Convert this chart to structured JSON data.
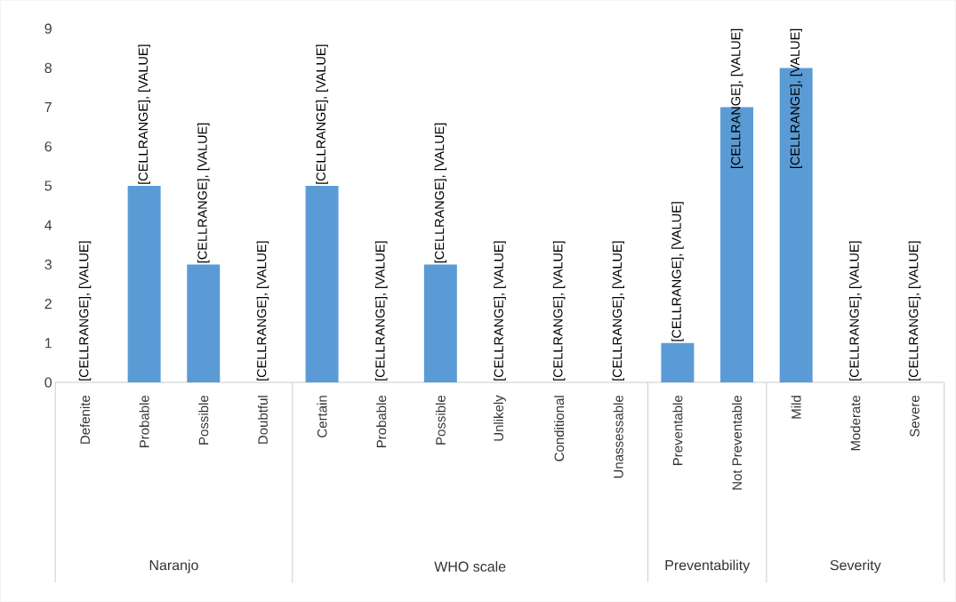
{
  "chart_data": {
    "type": "bar",
    "categories": [
      "Defenite",
      "Probable",
      "Possible",
      "Doubtful",
      "Certain",
      "Probable",
      "Possible",
      "Unlikely",
      "Conditional",
      "Unassessable",
      "Preventable",
      "Not Preventable",
      "Mild",
      "Moderate",
      "Severe"
    ],
    "values": [
      0,
      5,
      3,
      0,
      5,
      0,
      3,
      0,
      0,
      0,
      1,
      7,
      8,
      0,
      0
    ],
    "value_labels": [
      "[CELLRANGE], [VALUE]",
      "[CELLRANGE], [VALUE]",
      "[CELLRANGE], [VALUE]",
      "[CELLRANGE], [VALUE]",
      "[CELLRANGE], [VALUE]",
      "[CELLRANGE], [VALUE]",
      "[CELLRANGE], [VALUE]",
      "[CELLRANGE], [VALUE]",
      "[CELLRANGE], [VALUE]",
      "[CELLRANGE], [VALUE]",
      "[CELLRANGE], [VALUE]",
      "[CELLRANGE], [VALUE]",
      "[CELLRANGE], [VALUE]",
      "[CELLRANGE], [VALUE]",
      "[CELLRANGE], [VALUE]"
    ],
    "color": "#5b9bd5",
    "ylim": [
      0,
      9
    ],
    "yticks": [
      0,
      1,
      2,
      3,
      4,
      5,
      6,
      7,
      8,
      9
    ],
    "annotations": [
      "Naranjo",
      "WHO scale",
      "Preventability",
      "Severity"
    ]
  }
}
